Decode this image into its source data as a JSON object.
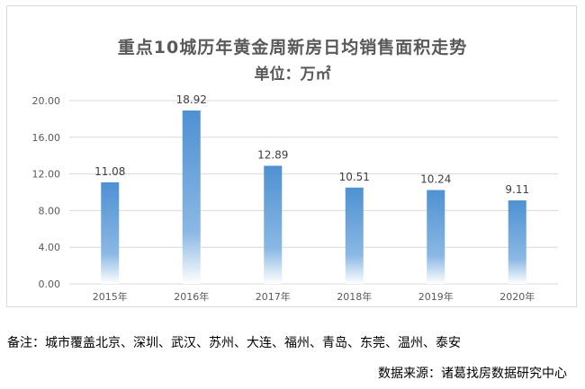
{
  "chart_data": {
    "type": "bar",
    "title": "重点10城历年黄金周新房日均销售面积走势",
    "subtitle": "单位：万㎡",
    "categories": [
      "2015年",
      "2016年",
      "2017年",
      "2018年",
      "2019年",
      "2020年"
    ],
    "values": [
      11.08,
      18.92,
      12.89,
      10.51,
      10.24,
      9.11
    ],
    "value_labels": [
      "11.08",
      "18.92",
      "12.89",
      "10.51",
      "10.24",
      "9.11"
    ],
    "ylim": [
      0,
      20
    ],
    "yticks": [
      "0.00",
      "4.00",
      "8.00",
      "12.00",
      "16.00",
      "20.00"
    ],
    "ytick_values": [
      0,
      4,
      8,
      12,
      16,
      20
    ],
    "grid": true,
    "bar_color": "#5b9bd5",
    "xlabel": "",
    "ylabel": ""
  },
  "note": "备注：城市覆盖北京、深圳、武汉、苏州、大连、福州、青岛、东莞、温州、泰安",
  "source": "数据来源：诸葛找房数据研究中心"
}
